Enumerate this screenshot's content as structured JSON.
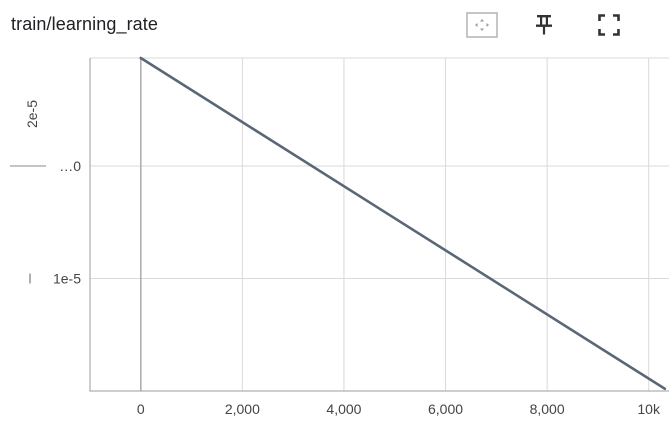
{
  "header": {
    "title": "train/learning_rate",
    "tools": [
      {
        "name": "fit-domain-icon"
      },
      {
        "name": "pin-icon"
      },
      {
        "name": "fullscreen-icon"
      }
    ]
  },
  "chart_data": {
    "type": "line",
    "title": "train/learning_rate",
    "xlabel": "",
    "ylabel": "",
    "xlim": [
      -1000,
      10400
    ],
    "ylim": [
      0,
      2.96e-05
    ],
    "x_ticks": [
      {
        "value": 0,
        "label": "0"
      },
      {
        "value": 2000,
        "label": "2,000"
      },
      {
        "value": 4000,
        "label": "4,000"
      },
      {
        "value": 6000,
        "label": "6,000"
      },
      {
        "value": 8000,
        "label": "8,000"
      },
      {
        "value": 10000,
        "label": "10k"
      }
    ],
    "y_ticks": [
      {
        "value": 1e-05,
        "label": "1e-5"
      },
      {
        "value": 2e-05,
        "label": "…0"
      }
    ],
    "y_rotated_label": {
      "value": 2e-05,
      "label": "2e-5"
    },
    "grid": true,
    "series": [
      {
        "color": "#5b6678",
        "x": [
          0,
          10318
        ],
        "y": [
          2.96e-05,
          2e-07
        ]
      }
    ]
  }
}
